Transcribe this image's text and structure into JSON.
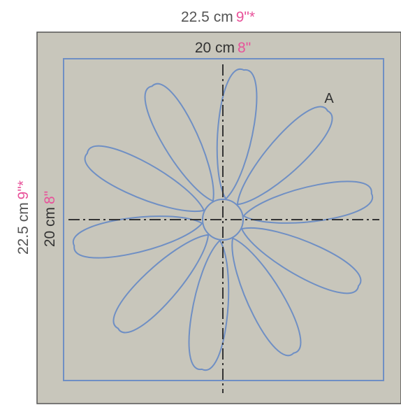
{
  "outer_width": {
    "metric": "22.5 cm",
    "imperial": "9\"*"
  },
  "outer_height": {
    "metric": "22.5 cm",
    "imperial": "9\"*"
  },
  "inner_width": {
    "metric": "20 cm",
    "imperial": "8\""
  },
  "inner_height": {
    "metric": "20 cm",
    "imperial": "8\""
  },
  "template_label": "A",
  "petal_count": 10,
  "colors": {
    "fabric": "#c8c6bb",
    "outline": "#6f8fc4",
    "border": "#555555",
    "imperial_text": "#e8529a",
    "metric_text": "#555555",
    "center_lines": "#333333"
  }
}
